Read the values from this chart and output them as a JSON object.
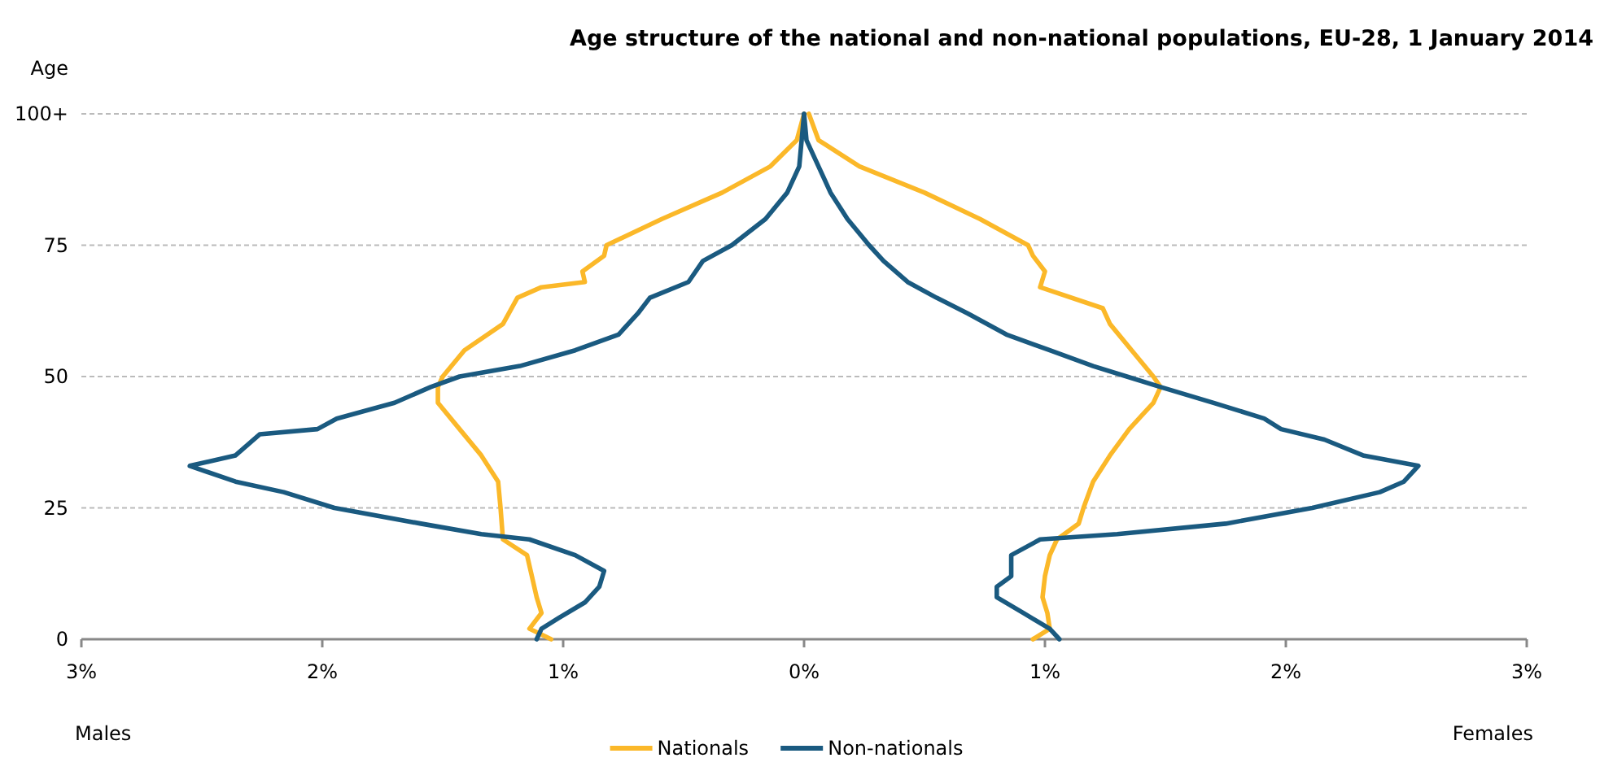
{
  "chart_data": {
    "type": "line",
    "title": "Age structure of the national and non-national populations, EU-28, 1 January 2014",
    "ylabel": "Age",
    "annotations": [
      "Males",
      "Females"
    ],
    "xlim": [
      -3,
      3
    ],
    "xticks": [
      {
        "value": -3,
        "label": "3%"
      },
      {
        "value": -2,
        "label": "2%"
      },
      {
        "value": -1,
        "label": "1%"
      },
      {
        "value": 0,
        "label": "0%"
      },
      {
        "value": 1,
        "label": "1%"
      },
      {
        "value": 2,
        "label": "2%"
      },
      {
        "value": 3,
        "label": "3%"
      }
    ],
    "ylim": [
      0,
      100
    ],
    "yticks": [
      0,
      25,
      50,
      75,
      {
        "value": 100,
        "label": "100+"
      }
    ],
    "grid": "y",
    "legend": "bottom",
    "marker": "none",
    "line_style": "solid",
    "series": [
      {
        "name": "Nationals",
        "color": "#fbb829",
        "x": [
          -1.05,
          -1.14,
          -1.09,
          -1.11,
          -1.13,
          -1.15,
          -1.25,
          -1.26,
          -1.27,
          -1.34,
          -1.43,
          -1.52,
          -1.52,
          -1.5,
          -1.41,
          -1.25,
          -1.19,
          -1.09,
          -0.91,
          -0.92,
          -0.83,
          -0.82,
          -0.59,
          -0.34,
          -0.14,
          -0.03,
          0
        ],
        "values": [
          0,
          2,
          5,
          8,
          12,
          16,
          19,
          25,
          30,
          35,
          40,
          45,
          48,
          50,
          55,
          60,
          65,
          67,
          68,
          70,
          73,
          75,
          80,
          85,
          90,
          95,
          100
        ]
      },
      {
        "name": "Non-nationals",
        "color": "#1a5a80",
        "x": [
          -1.11,
          -1.09,
          -1.02,
          -0.91,
          -0.85,
          -0.83,
          -0.95,
          -1.14,
          -1.34,
          -1.59,
          -1.95,
          -2.16,
          -2.36,
          -2.55,
          -2.36,
          -2.26,
          -2.02,
          -1.94,
          -1.7,
          -1.55,
          -1.43,
          -1.18,
          -0.95,
          -0.77,
          -0.69,
          -0.64,
          -0.48,
          -0.42,
          -0.3,
          -0.16,
          -0.07,
          -0.02,
          0
        ],
        "values": [
          0,
          2,
          4,
          7,
          10,
          13,
          16,
          19,
          20,
          22,
          25,
          28,
          30,
          33,
          35,
          39,
          40,
          42,
          45,
          48,
          50,
          52,
          55,
          58,
          62,
          65,
          68,
          72,
          75,
          80,
          85,
          90,
          100
        ]
      },
      {
        "color": "#fbb829",
        "x": [
          0.95,
          1.02,
          1.01,
          0.99,
          1,
          1.02,
          1.05,
          1.14,
          1.16,
          1.2,
          1.27,
          1.35,
          1.45,
          1.48,
          1.45,
          1.36,
          1.27,
          1.24,
          0.98,
          1,
          0.95,
          0.93,
          0.73,
          0.5,
          0.23,
          0.06,
          0.02
        ],
        "values": [
          0,
          2,
          5,
          8,
          12,
          16,
          19,
          22,
          25,
          30,
          35,
          40,
          45,
          48,
          50,
          55,
          60,
          63,
          67,
          70,
          73,
          75,
          80,
          85,
          90,
          95,
          100
        ]
      },
      {
        "color": "#1a5a80",
        "x": [
          1.06,
          1.02,
          0.91,
          0.8,
          0.8,
          0.86,
          0.86,
          0.98,
          1.3,
          1.75,
          2.11,
          2.39,
          2.49,
          2.55,
          2.32,
          2.16,
          1.98,
          1.91,
          1.7,
          1.48,
          1.34,
          1.2,
          1.02,
          0.84,
          0.68,
          0.55,
          0.43,
          0.33,
          0.27,
          0.18,
          0.11,
          0.06,
          0.01,
          0
        ],
        "values": [
          0,
          2,
          5,
          8,
          10,
          12,
          16,
          19,
          20,
          22,
          25,
          28,
          30,
          33,
          35,
          38,
          40,
          42,
          45,
          48,
          50,
          52,
          55,
          58,
          62,
          65,
          68,
          72,
          75,
          80,
          85,
          90,
          95,
          100
        ]
      }
    ]
  }
}
